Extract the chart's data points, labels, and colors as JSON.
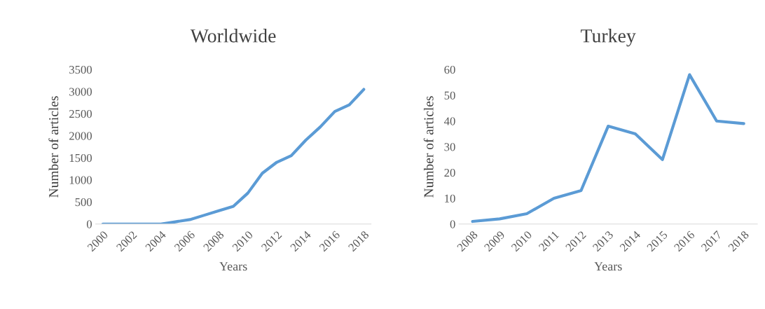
{
  "chart_data": [
    {
      "type": "line",
      "title": "Worldwide",
      "xlabel": "Years",
      "ylabel": "Number of articles",
      "categories": [
        "2000",
        null,
        "2002",
        null,
        "2004",
        null,
        "2006",
        null,
        "2008",
        null,
        "2010",
        null,
        "2012",
        null,
        "2014",
        null,
        "2016",
        null,
        "2018"
      ],
      "series": [
        {
          "color": "#5b9bd5",
          "values": [
            0,
            0,
            0,
            0,
            0,
            50,
            100,
            200,
            300,
            400,
            700,
            1150,
            1400,
            1550,
            1900,
            2200,
            2550,
            2700,
            3050
          ]
        }
      ],
      "ylim": [
        0,
        3500
      ],
      "yticks": [
        0,
        500,
        1000,
        1500,
        2000,
        2500,
        3000,
        3500
      ],
      "line_style": "solid"
    },
    {
      "type": "line",
      "title": "Turkey",
      "xlabel": "Years",
      "ylabel": "Number of articles",
      "categories": [
        "2008",
        "2009",
        "2010",
        "2011",
        "2012",
        "2013",
        "2014",
        "2015",
        "2016",
        "2017",
        "2018"
      ],
      "series": [
        {
          "color": "#5b9bd5",
          "values": [
            1,
            2,
            4,
            10,
            13,
            38,
            35,
            25,
            58,
            40,
            39
          ]
        }
      ],
      "ylim": [
        0,
        60
      ],
      "yticks": [
        0,
        10,
        20,
        30,
        40,
        50,
        60
      ],
      "line_style": "solid"
    }
  ]
}
